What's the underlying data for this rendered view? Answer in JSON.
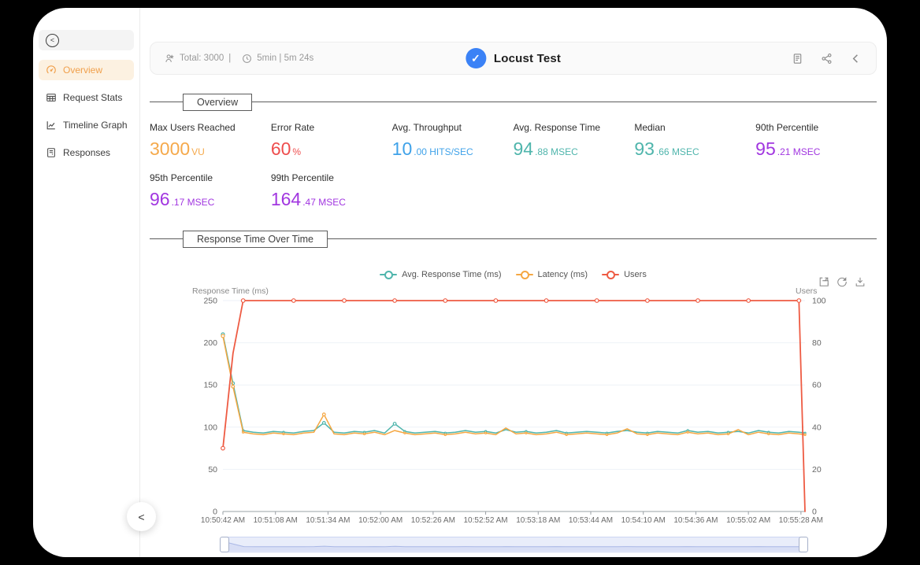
{
  "sidebar": {
    "items": [
      {
        "label": "Overview",
        "icon": "gauge-icon",
        "active": true
      },
      {
        "label": "Request Stats",
        "icon": "table-icon",
        "active": false
      },
      {
        "label": "Timeline Graph",
        "icon": "chart-icon",
        "active": false
      },
      {
        "label": "Responses",
        "icon": "document-icon",
        "active": false
      }
    ]
  },
  "topbar": {
    "total_label": "Total: 3000",
    "separator": "|",
    "duration_label": "5min | 5m 24s",
    "title": "Locust Test"
  },
  "sections": {
    "overview_title": "Overview",
    "chart_title": "Response Time Over Time"
  },
  "metrics": [
    {
      "label": "Max Users Reached",
      "main": "3000",
      "sub": "VU",
      "color": "#f5a94b"
    },
    {
      "label": "Error Rate",
      "main": "60",
      "sub": "%",
      "color": "#ee4d4d"
    },
    {
      "label": "Avg. Throughput",
      "main": "10",
      "sub": ".00 HITS/SEC",
      "color": "#3fa2e9"
    },
    {
      "label": "Avg. Response Time",
      "main": "94",
      "sub": ".88 MSEC",
      "color": "#4fb5ac"
    },
    {
      "label": "Median",
      "main": "93",
      "sub": ".66 MSEC",
      "color": "#4fb5ac"
    },
    {
      "label": "90th Percentile",
      "main": "95",
      "sub": ".21 MSEC",
      "color": "#a136e0"
    },
    {
      "label": "95th Percentile",
      "main": "96",
      "sub": ".17 MSEC",
      "color": "#a136e0"
    },
    {
      "label": "99th Percentile",
      "main": "164",
      "sub": ".47 MSEC",
      "color": "#a136e0"
    }
  ],
  "chart_data": {
    "type": "line",
    "title": "Response Time Over Time",
    "legend_position": "top-center",
    "grid": true,
    "y_left": {
      "label": "Response Time (ms)",
      "min": 0,
      "max": 250,
      "ticks": [
        0,
        50,
        100,
        150,
        200,
        250
      ]
    },
    "y_right": {
      "label": "Users",
      "min": 0,
      "max": 100,
      "ticks": [
        0,
        20,
        40,
        60,
        80,
        100
      ]
    },
    "duration_s": 288,
    "x_ticks": [
      {
        "t": 0,
        "label": "10:50:42 AM"
      },
      {
        "t": 26,
        "label": "10:51:08 AM"
      },
      {
        "t": 52,
        "label": "10:51:34 AM"
      },
      {
        "t": 78,
        "label": "10:52:00 AM"
      },
      {
        "t": 104,
        "label": "10:52:26 AM"
      },
      {
        "t": 130,
        "label": "10:52:52 AM"
      },
      {
        "t": 156,
        "label": "10:53:18 AM"
      },
      {
        "t": 182,
        "label": "10:53:44 AM"
      },
      {
        "t": 208,
        "label": "10:54:10 AM"
      },
      {
        "t": 234,
        "label": "10:54:36 AM"
      },
      {
        "t": 260,
        "label": "10:55:02 AM"
      },
      {
        "t": 286,
        "label": "10:55:28 AM"
      }
    ],
    "t": [
      0,
      5,
      10,
      15,
      20,
      25,
      30,
      35,
      40,
      45,
      50,
      55,
      60,
      65,
      70,
      75,
      80,
      85,
      90,
      95,
      100,
      105,
      110,
      115,
      120,
      125,
      130,
      135,
      140,
      145,
      150,
      155,
      160,
      165,
      170,
      175,
      180,
      185,
      190,
      195,
      200,
      205,
      210,
      215,
      220,
      225,
      230,
      235,
      240,
      245,
      250,
      255,
      260,
      265,
      270,
      275,
      280,
      285,
      288
    ],
    "series": [
      {
        "name": "Avg. Response Time (ms)",
        "axis": "left",
        "color": "#4fb5ac",
        "values": [
          210,
          152,
          96,
          94,
          93,
          95,
          94,
          93,
          95,
          96,
          105,
          94,
          93,
          95,
          94,
          96,
          93,
          104,
          95,
          93,
          94,
          95,
          93,
          94,
          96,
          94,
          95,
          93,
          97,
          94,
          95,
          93,
          94,
          96,
          93,
          94,
          95,
          94,
          93,
          95,
          96,
          94,
          93,
          95,
          94,
          93,
          96,
          94,
          95,
          93,
          94,
          95,
          93,
          96,
          94,
          93,
          95,
          94,
          93
        ]
      },
      {
        "name": "Latency (ms)",
        "axis": "left",
        "color": "#f5a742",
        "values": [
          208,
          148,
          94,
          92,
          91,
          93,
          92,
          91,
          93,
          94,
          115,
          92,
          91,
          93,
          92,
          94,
          91,
          96,
          93,
          91,
          92,
          93,
          91,
          92,
          94,
          92,
          93,
          91,
          99,
          92,
          93,
          91,
          92,
          94,
          91,
          92,
          93,
          92,
          91,
          93,
          98,
          92,
          91,
          93,
          92,
          91,
          94,
          92,
          93,
          91,
          92,
          97,
          91,
          94,
          92,
          91,
          93,
          92,
          91
        ]
      },
      {
        "name": "Users",
        "axis": "right",
        "color": "#ee5b43",
        "values": [
          30,
          75,
          100,
          100,
          100,
          100,
          100,
          100,
          100,
          100,
          100,
          100,
          100,
          100,
          100,
          100,
          100,
          100,
          100,
          100,
          100,
          100,
          100,
          100,
          100,
          100,
          100,
          100,
          100,
          100,
          100,
          100,
          100,
          100,
          100,
          100,
          100,
          100,
          100,
          100,
          100,
          100,
          100,
          100,
          100,
          100,
          100,
          100,
          100,
          100,
          100,
          100,
          100,
          100,
          100,
          100,
          100,
          100,
          0
        ]
      }
    ]
  }
}
